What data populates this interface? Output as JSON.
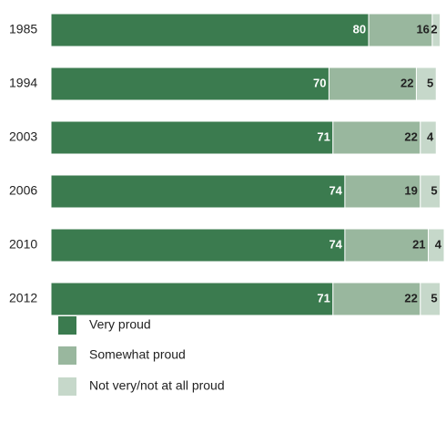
{
  "chart_data": {
    "type": "stacked-bar-horizontal",
    "categories": [
      "1985",
      "1994",
      "2003",
      "2006",
      "2010",
      "2012"
    ],
    "series": [
      {
        "name": "Very proud",
        "color": "#3b7b4f",
        "values": [
          80,
          70,
          71,
          74,
          74,
          71
        ]
      },
      {
        "name": "Somewhat proud",
        "color": "#99b79e",
        "values": [
          16,
          22,
          22,
          19,
          21,
          22
        ]
      },
      {
        "name": "Not very/not at all proud",
        "color": "#c6d8ca",
        "values": [
          2,
          5,
          4,
          5,
          4,
          5
        ]
      }
    ],
    "xlim": [
      0,
      99
    ]
  }
}
